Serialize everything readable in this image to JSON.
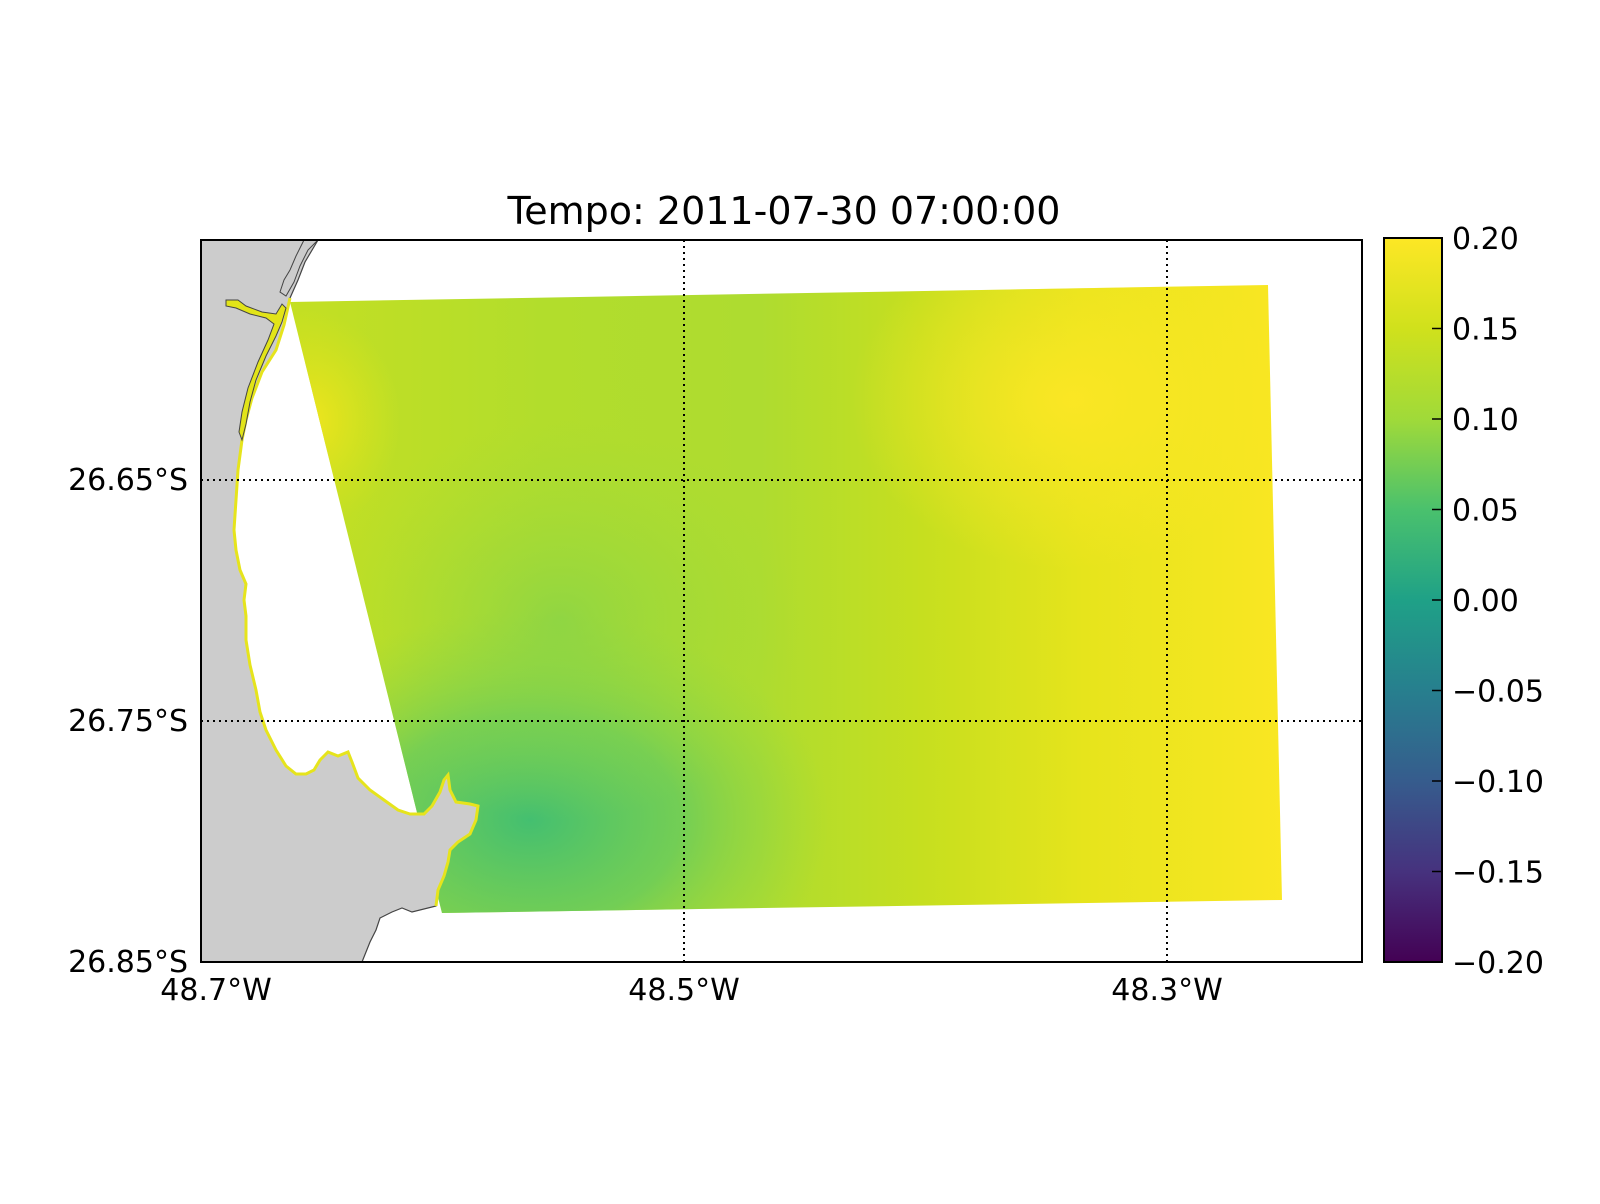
{
  "title": "Tempo: 2011-07-30 07:00:00",
  "map": {
    "type": "heatmap",
    "lon_range": [
      -48.7,
      -48.2
    ],
    "lat_range": [
      -26.85,
      -26.55
    ],
    "x_ticks": [
      {
        "value": -48.7,
        "label": "48.7°W"
      },
      {
        "value": -48.5,
        "label": "48.5°W"
      },
      {
        "value": -48.3,
        "label": "48.3°W"
      }
    ],
    "y_ticks": [
      {
        "value": -26.65,
        "label": "26.65°S"
      },
      {
        "value": -26.75,
        "label": "26.75°S"
      },
      {
        "value": -26.85,
        "label": "26.85°S"
      }
    ],
    "grid": "dotted",
    "land_color": "#cccccc",
    "coastline_color": "#444444"
  },
  "colorbar": {
    "colormap": "viridis",
    "min": -0.2,
    "max": 0.2,
    "ticks": [
      {
        "value": 0.2,
        "label": "0.20"
      },
      {
        "value": 0.15,
        "label": "0.15"
      },
      {
        "value": 0.1,
        "label": "0.10"
      },
      {
        "value": 0.05,
        "label": "0.05"
      },
      {
        "value": 0.0,
        "label": "0.00"
      },
      {
        "value": -0.05,
        "label": "−0.05"
      },
      {
        "value": -0.1,
        "label": "−0.10"
      },
      {
        "value": -0.15,
        "label": "−0.15"
      },
      {
        "value": -0.2,
        "label": "−0.20"
      }
    ]
  }
}
